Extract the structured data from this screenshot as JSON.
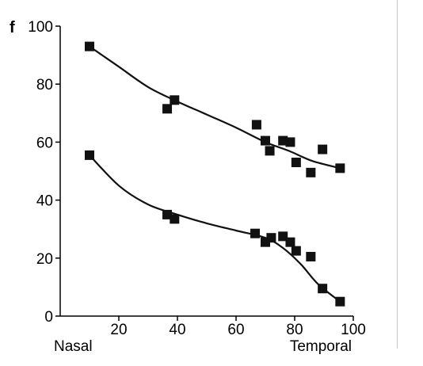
{
  "chart_data": {
    "type": "scatter",
    "panel_label": "f",
    "xlim": [
      0,
      100
    ],
    "ylim": [
      0,
      100
    ],
    "x_ticks": [
      20,
      40,
      60,
      80,
      100
    ],
    "y_ticks": [
      0,
      20,
      40,
      60,
      80,
      100
    ],
    "x_end_labels": {
      "left": "Nasal",
      "right": "Temporal"
    },
    "grid": false,
    "legend": "none",
    "marker": "square",
    "color": "#111111",
    "series": [
      {
        "points": [
          [
            10,
            93
          ],
          [
            36.5,
            71.5
          ],
          [
            39,
            74.5
          ],
          [
            67,
            66
          ],
          [
            70,
            60.5
          ],
          [
            71.5,
            57
          ],
          [
            76,
            60.5
          ],
          [
            78.5,
            60
          ],
          [
            80.5,
            53
          ],
          [
            85.5,
            49.5
          ],
          [
            89.5,
            57.5
          ],
          [
            95.5,
            51
          ]
        ],
        "fit": [
          [
            10,
            93
          ],
          [
            20,
            86
          ],
          [
            30,
            79
          ],
          [
            40,
            74
          ],
          [
            50,
            69.5
          ],
          [
            60,
            65
          ],
          [
            70,
            60
          ],
          [
            78,
            57
          ],
          [
            86,
            53.5
          ],
          [
            95.5,
            51
          ]
        ]
      },
      {
        "points": [
          [
            10,
            55.5
          ],
          [
            36.5,
            35
          ],
          [
            39,
            33.5
          ],
          [
            66.5,
            28.5
          ],
          [
            70,
            25.5
          ],
          [
            72,
            27
          ],
          [
            76,
            27.5
          ],
          [
            78.5,
            25.5
          ],
          [
            80.5,
            22.5
          ],
          [
            85.5,
            20.5
          ],
          [
            89.5,
            9.5
          ],
          [
            95.5,
            5
          ]
        ],
        "fit": [
          [
            10,
            55.5
          ],
          [
            20,
            45
          ],
          [
            30,
            38.5
          ],
          [
            40,
            35
          ],
          [
            50,
            32
          ],
          [
            60,
            29.5
          ],
          [
            70,
            27
          ],
          [
            76,
            23.5
          ],
          [
            82,
            18
          ],
          [
            88,
            11
          ],
          [
            95.5,
            5
          ]
        ]
      }
    ]
  }
}
